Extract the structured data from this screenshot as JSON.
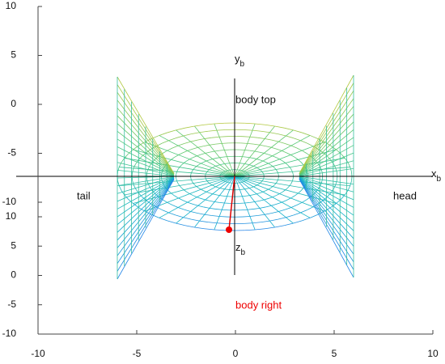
{
  "chart_data": {
    "type": "surface",
    "xlim": [
      -10,
      10
    ],
    "xticks": [
      -10,
      -5,
      0,
      5,
      10
    ],
    "ylim": [
      -10,
      10
    ],
    "yticks": [
      -10,
      -5,
      0,
      5,
      10
    ],
    "zlim": [
      -10,
      10
    ],
    "zticks": [
      -10,
      -5,
      0,
      5,
      10
    ],
    "axis_labels": {
      "x": {
        "main": "x",
        "sub": "b"
      },
      "y": {
        "main": "y",
        "sub": "b"
      },
      "z": {
        "main": "z",
        "sub": "b"
      }
    },
    "annotations": {
      "top": "body top",
      "front": "head",
      "back": "tail",
      "right": "body right"
    }
  }
}
